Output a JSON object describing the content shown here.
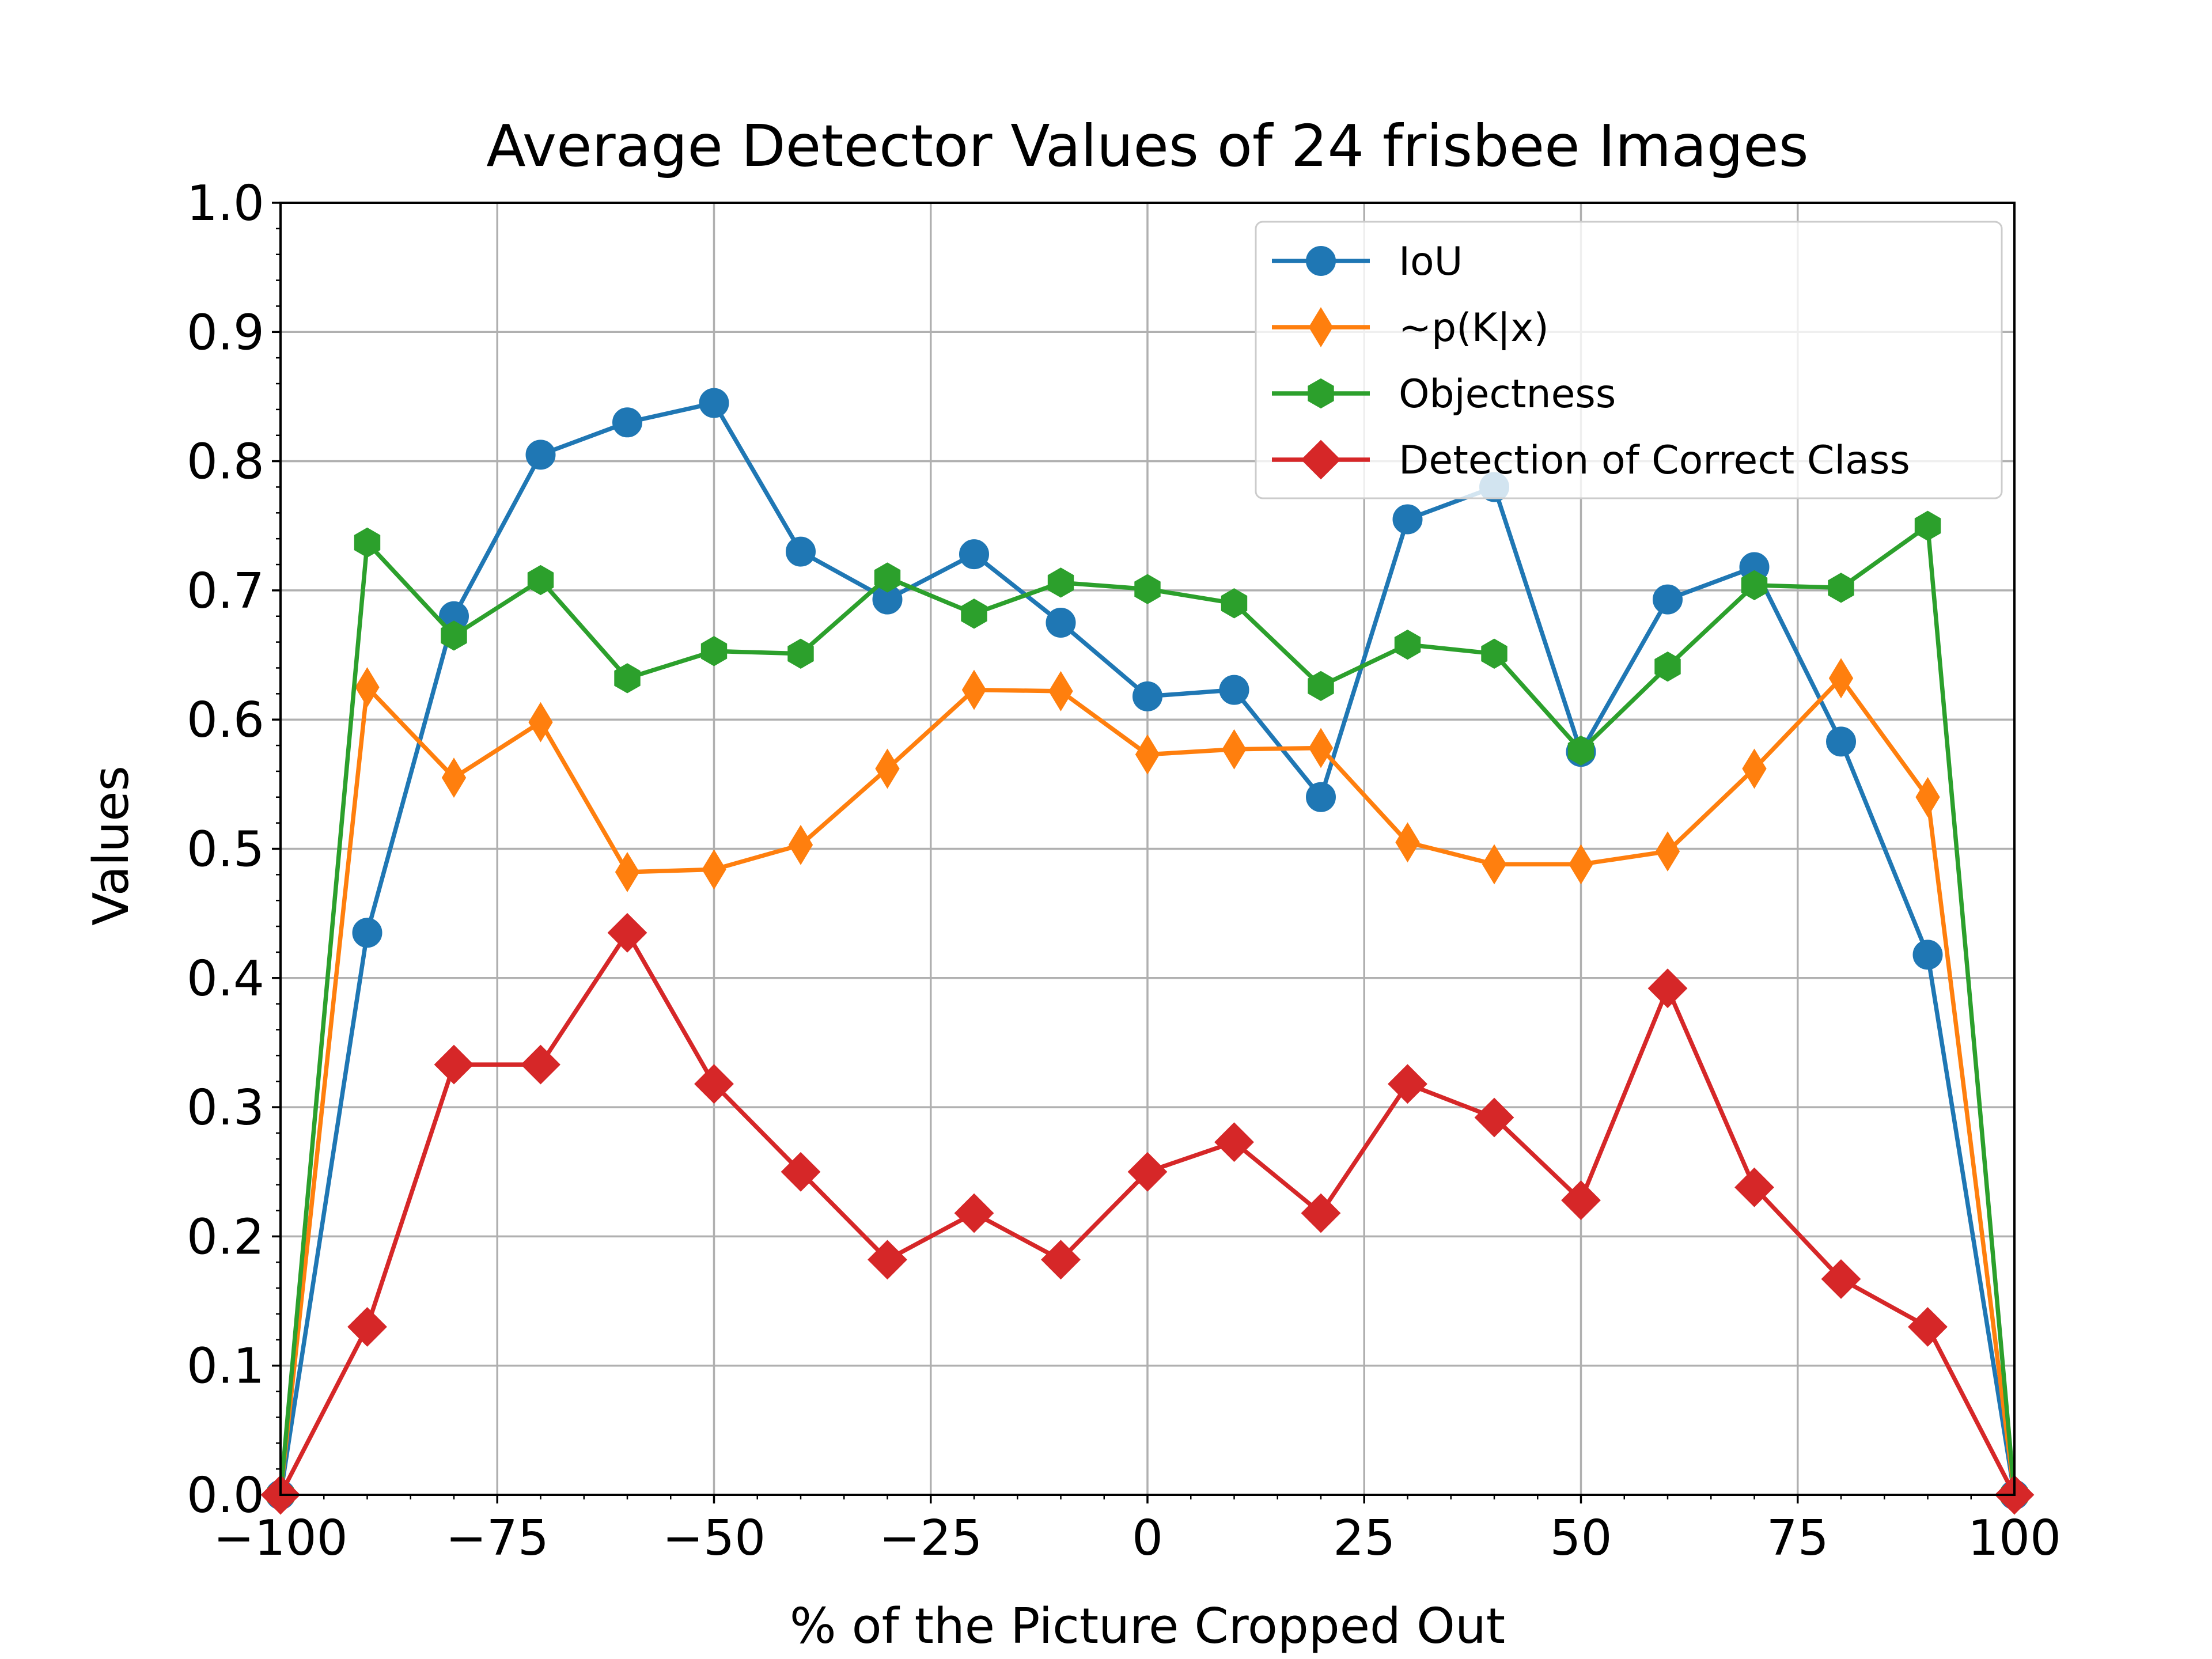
{
  "chart_data": {
    "type": "line",
    "title": "Average Detector Values of 24 frisbee Images",
    "xlabel": "% of the Picture Cropped Out",
    "ylabel": "Values",
    "xlim": [
      -100,
      100
    ],
    "ylim": [
      0,
      1
    ],
    "grid": true,
    "legend_position": "top-right",
    "x_ticks": [
      -100,
      -75,
      -50,
      -25,
      0,
      25,
      50,
      75,
      100
    ],
    "x_tick_labels": [
      "−100",
      "−75",
      "−50",
      "−25",
      "0",
      "25",
      "50",
      "75",
      "100"
    ],
    "y_ticks": [
      0,
      0.1,
      0.2,
      0.3,
      0.4,
      0.5,
      0.6,
      0.7,
      0.8,
      0.9,
      1.0
    ],
    "y_tick_labels": [
      "0.0",
      "0.1",
      "0.2",
      "0.3",
      "0.4",
      "0.5",
      "0.6",
      "0.7",
      "0.8",
      "0.9",
      "1.0"
    ],
    "x": [
      -100,
      -90,
      -80,
      -70,
      -60,
      -50,
      -40,
      -30,
      -20,
      -10,
      0,
      10,
      20,
      30,
      40,
      50,
      60,
      70,
      80,
      90,
      100
    ],
    "series": [
      {
        "name": "IoU",
        "color": "#1f77b4",
        "marker": "circle",
        "values": [
          0.0,
          0.435,
          0.68,
          0.805,
          0.83,
          0.845,
          0.73,
          0.693,
          0.728,
          0.675,
          0.618,
          0.623,
          0.54,
          0.755,
          0.78,
          0.575,
          0.693,
          0.718,
          0.583,
          0.418,
          0.0
        ]
      },
      {
        "name": "~p(K|x)",
        "color": "#ff7f0e",
        "marker": "thin-diamond",
        "values": [
          0.0,
          0.625,
          0.555,
          0.598,
          0.482,
          0.484,
          0.503,
          0.562,
          0.623,
          0.622,
          0.573,
          0.577,
          0.578,
          0.505,
          0.488,
          0.488,
          0.498,
          0.562,
          0.632,
          0.54,
          0.0
        ]
      },
      {
        "name": "Objectness",
        "color": "#2ca02c",
        "marker": "hexagon",
        "values": [
          0.0,
          0.737,
          0.665,
          0.708,
          0.632,
          0.653,
          0.651,
          0.71,
          0.682,
          0.706,
          0.701,
          0.69,
          0.626,
          0.658,
          0.651,
          0.576,
          0.641,
          0.704,
          0.702,
          0.75,
          0.0
        ]
      },
      {
        "name": "Detection of Correct Class",
        "color": "#d62728",
        "marker": "diamond",
        "values": [
          0.0,
          0.13,
          0.333,
          0.333,
          0.435,
          0.318,
          0.25,
          0.182,
          0.218,
          0.182,
          0.25,
          0.273,
          0.218,
          0.318,
          0.292,
          0.228,
          0.392,
          0.238,
          0.167,
          0.13,
          0.0
        ]
      }
    ]
  }
}
